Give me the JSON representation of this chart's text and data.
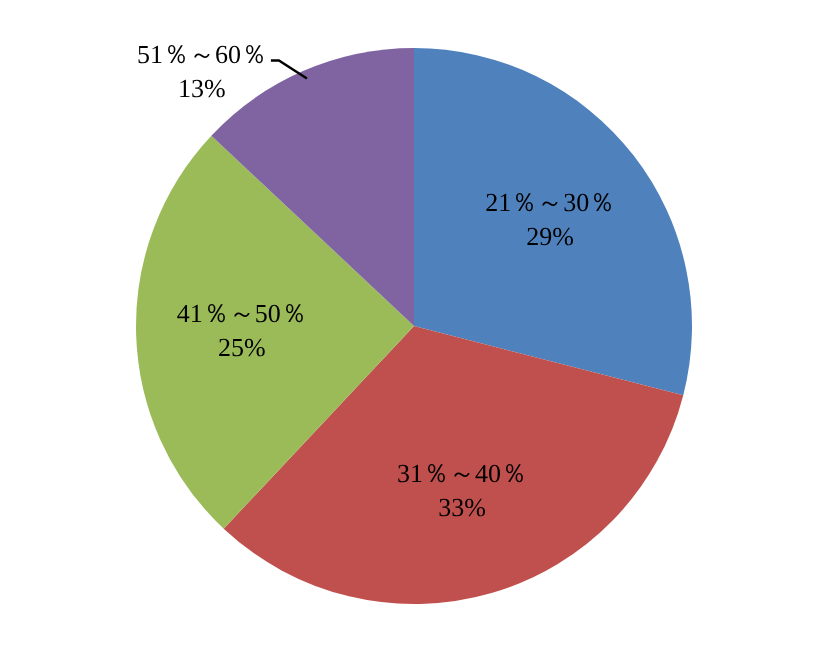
{
  "chart_data": {
    "type": "pie",
    "categories": [
      "21％～30％",
      "31％～40％",
      "41％～50％",
      "51％～60％"
    ],
    "values": [
      29,
      33,
      25,
      13
    ],
    "colors": [
      "#4f81bd",
      "#c0504d",
      "#9bbb59",
      "#8064a2"
    ],
    "value_labels": [
      "29%",
      "33%",
      "25%",
      "13%"
    ],
    "legend": false
  }
}
